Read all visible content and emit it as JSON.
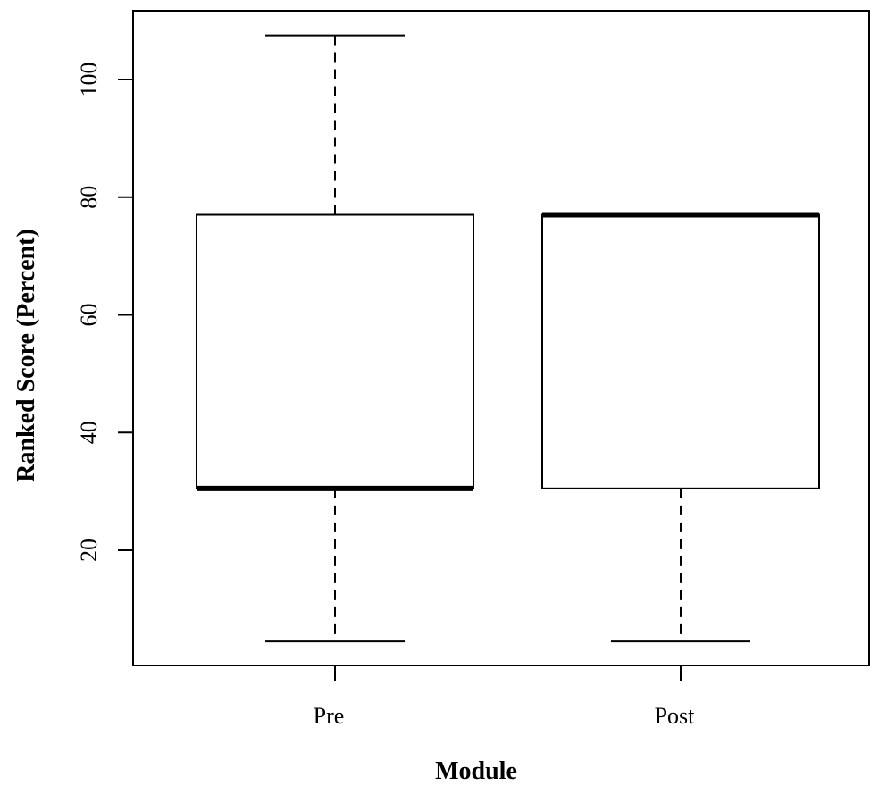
{
  "chart_data": {
    "type": "box",
    "xlabel": "Module",
    "ylabel": "Ranked Score (Percent)",
    "categories": [
      "Pre",
      "Post"
    ],
    "ylim": [
      0,
      112
    ],
    "yticks": [
      20,
      40,
      60,
      80,
      100
    ],
    "boxes": [
      {
        "label": "Pre",
        "whisker_low": 4.5,
        "q1": 30.5,
        "median": 30.5,
        "q3": 77,
        "whisker_high": 107.5
      },
      {
        "label": "Post",
        "whisker_low": 4.5,
        "q1": 30.5,
        "median": 77,
        "q3": 77,
        "whisker_high": 77
      }
    ],
    "grid": false,
    "colors": {
      "box_fill": "#ffffff",
      "stroke": "#000000"
    }
  }
}
